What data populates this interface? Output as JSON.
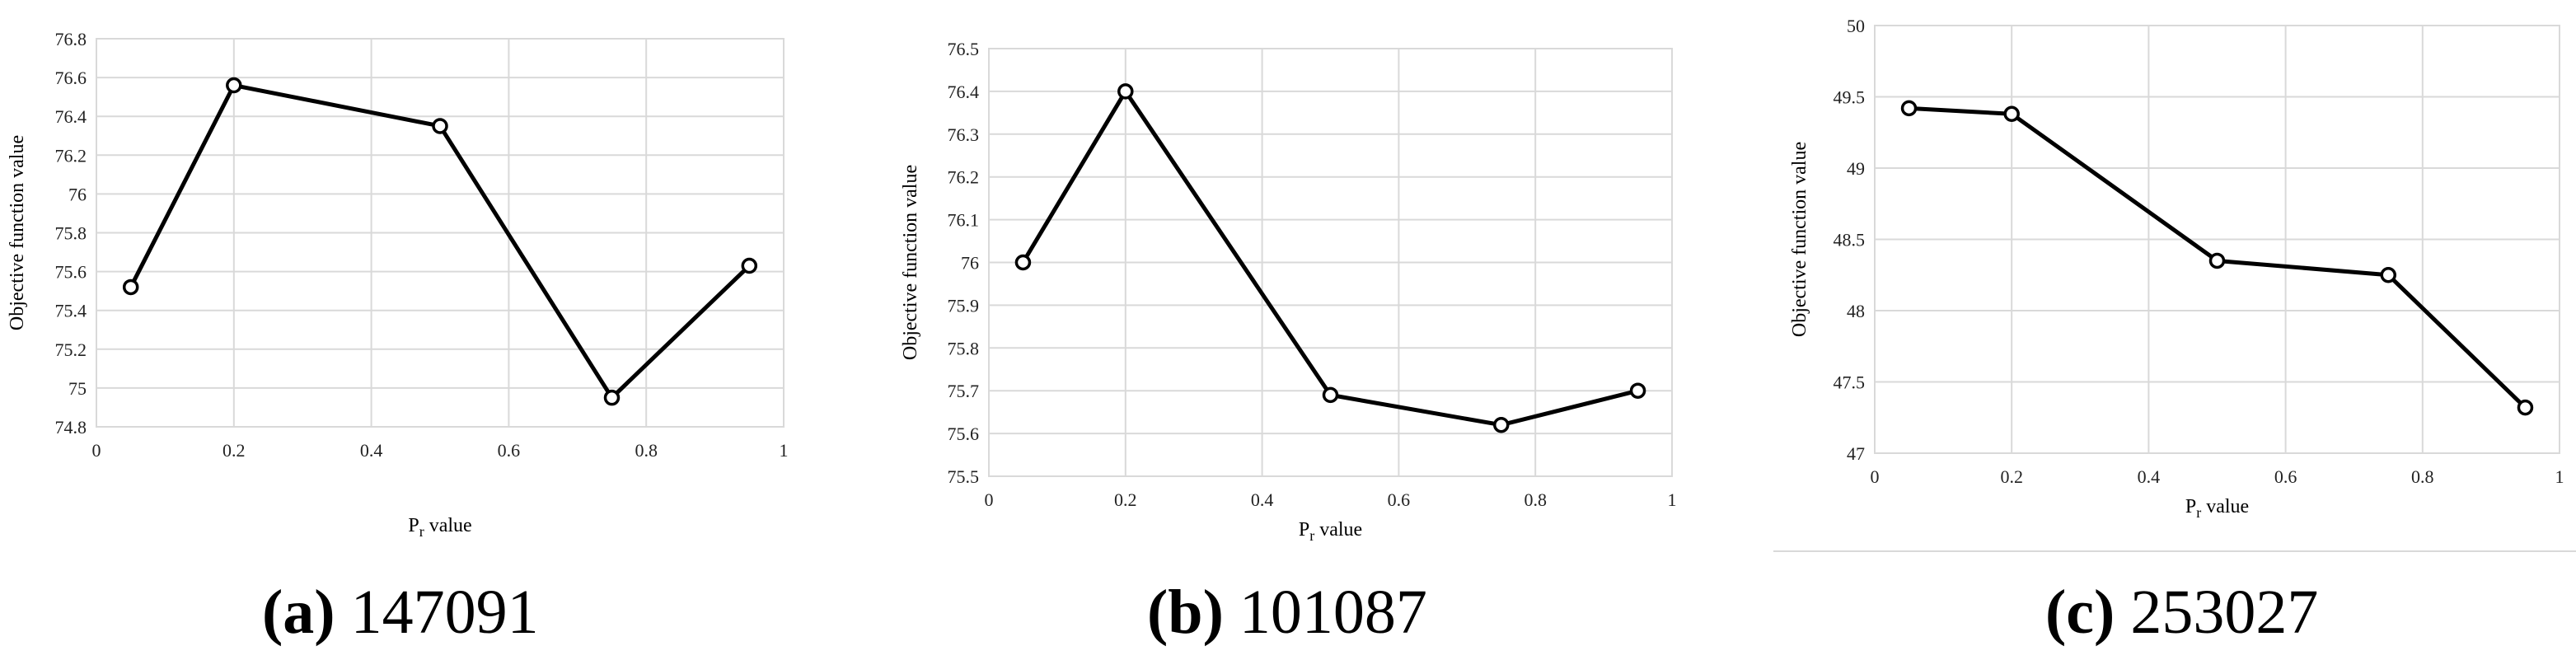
{
  "chart_data": [
    {
      "type": "line",
      "xlabel_main": "P",
      "xlabel_sub": "r",
      "xlabel_rest": " value",
      "ylabel": "Objective function value",
      "xlim": [
        0,
        1
      ],
      "ylim": [
        74.8,
        76.8
      ],
      "xticks": [
        0,
        0.2,
        0.4,
        0.6,
        0.8,
        1
      ],
      "xtick_labels": [
        "0",
        "0.2",
        "0.4",
        "0.6",
        "0.8",
        "1"
      ],
      "yticks": [
        74.8,
        75,
        75.2,
        75.4,
        75.6,
        75.8,
        76,
        76.2,
        76.4,
        76.6,
        76.8
      ],
      "ytick_labels": [
        "74.8",
        "75",
        "75.2",
        "75.4",
        "75.6",
        "75.8",
        "76",
        "76.2",
        "76.4",
        "76.6",
        "76.8"
      ],
      "grid": true,
      "legend": "none",
      "x": [
        0.05,
        0.2,
        0.5,
        0.75,
        0.95
      ],
      "series": [
        {
          "values": [
            75.52,
            76.56,
            76.35,
            74.95,
            75.63
          ]
        }
      ],
      "caption_letter": "(a)",
      "caption_text": " 147091"
    },
    {
      "type": "line",
      "xlabel_main": "P",
      "xlabel_sub": "r",
      "xlabel_rest": " value",
      "ylabel": "Objective function value",
      "xlim": [
        0,
        1
      ],
      "ylim": [
        75.5,
        76.5
      ],
      "xticks": [
        0,
        0.2,
        0.4,
        0.6,
        0.8,
        1
      ],
      "xtick_labels": [
        "0",
        "0.2",
        "0.4",
        "0.6",
        "0.8",
        "1"
      ],
      "yticks": [
        75.5,
        75.6,
        75.7,
        75.8,
        75.9,
        76,
        76.1,
        76.2,
        76.3,
        76.4,
        76.5
      ],
      "ytick_labels": [
        "75.5",
        "75.6",
        "75.7",
        "75.8",
        "75.9",
        "76",
        "76.1",
        "76.2",
        "76.3",
        "76.4",
        "76.5"
      ],
      "grid": true,
      "legend": "none",
      "x": [
        0.05,
        0.2,
        0.5,
        0.75,
        0.95
      ],
      "series": [
        {
          "values": [
            76.0,
            76.4,
            75.69,
            75.62,
            75.7
          ]
        }
      ],
      "caption_letter": "(b)",
      "caption_text": " 101087"
    },
    {
      "type": "line",
      "xlabel_main": "P",
      "xlabel_sub": "r",
      "xlabel_rest": " value",
      "ylabel": "Objective function value",
      "xlim": [
        0,
        1
      ],
      "ylim": [
        47,
        50
      ],
      "xticks": [
        0,
        0.2,
        0.4,
        0.6,
        0.8,
        1
      ],
      "xtick_labels": [
        "0",
        "0.2",
        "0.4",
        "0.6",
        "0.8",
        "1"
      ],
      "yticks": [
        47,
        47.5,
        48,
        48.5,
        49,
        49.5,
        50
      ],
      "ytick_labels": [
        "47",
        "47.5",
        "48",
        "48.5",
        "49",
        "49.5",
        "50"
      ],
      "grid": true,
      "legend": "none",
      "x": [
        0.05,
        0.2,
        0.5,
        0.75,
        0.95
      ],
      "series": [
        {
          "values": [
            49.42,
            49.38,
            48.35,
            48.25,
            47.32
          ]
        }
      ],
      "caption_letter": "(c)",
      "caption_text": " 253027"
    }
  ]
}
